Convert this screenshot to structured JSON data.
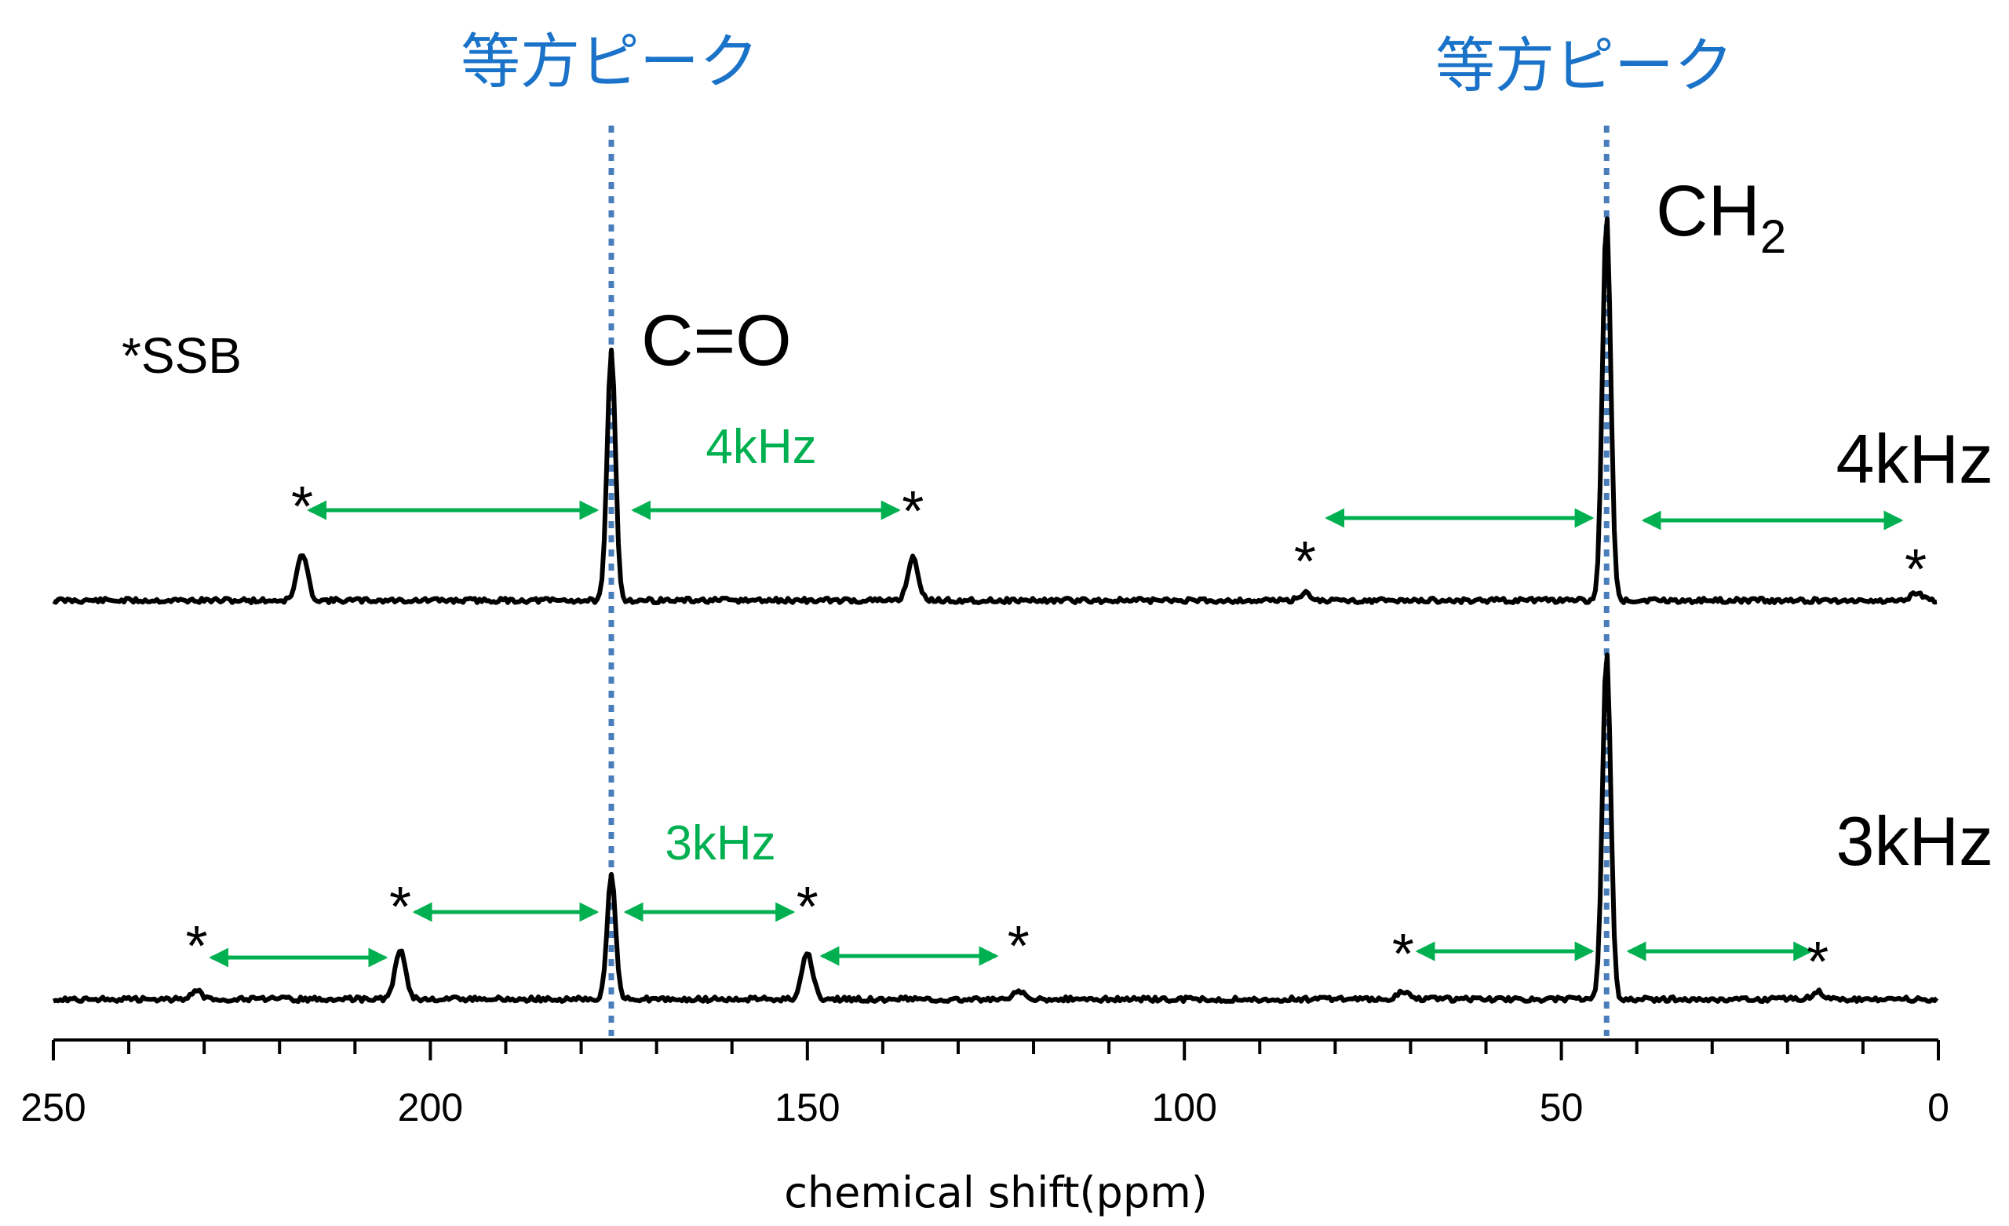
{
  "chart_data": {
    "type": "line",
    "xlabel": "chemical shift(ppm)",
    "xlim": [
      250,
      0
    ],
    "x_reversed": true,
    "x_ticks": [
      "250",
      "200",
      "150",
      "100",
      "50",
      "0"
    ],
    "x_tick_values": [
      250,
      200,
      150,
      100,
      50,
      0
    ],
    "minor_tick_step": 10,
    "legend_note": "*SSB",
    "colors": {
      "isotropic": "#1a73c8",
      "arrow": "#00b050",
      "trace": "#000000",
      "guide": "#4a7ebb"
    },
    "isotropic_label": "等方ピーク",
    "isotropic_shifts": [
      176,
      44
    ],
    "peak_labels": [
      {
        "text": "C=O",
        "shift": 176
      },
      {
        "text": "CH",
        "sub": "2",
        "shift": 44
      }
    ],
    "series": [
      {
        "name": "4kHz",
        "spacing_label": "4kHz",
        "peaks": [
          {
            "shift": 217,
            "height": 0.12,
            "ssb": true
          },
          {
            "shift": 176,
            "height": 0.65,
            "ssb": false
          },
          {
            "shift": 136,
            "height": 0.11,
            "ssb": true
          },
          {
            "shift": 84,
            "height": 0.02,
            "ssb": true
          },
          {
            "shift": 44,
            "height": 1.0,
            "ssb": false
          },
          {
            "shift": 3,
            "height": 0.02,
            "ssb": true
          }
        ],
        "spacing_arrows": [
          [
            216,
            178
          ],
          [
            173,
            138
          ],
          [
            81,
            46
          ],
          [
            39,
            5
          ]
        ]
      },
      {
        "name": "3kHz",
        "spacing_label": "3kHz",
        "peaks": [
          {
            "shift": 231,
            "height": 0.02,
            "ssb": true
          },
          {
            "shift": 204,
            "height": 0.13,
            "ssb": true
          },
          {
            "shift": 176,
            "height": 0.33,
            "ssb": false
          },
          {
            "shift": 150,
            "height": 0.12,
            "ssb": true
          },
          {
            "shift": 122,
            "height": 0.02,
            "ssb": true
          },
          {
            "shift": 71,
            "height": 0.02,
            "ssb": true
          },
          {
            "shift": 44,
            "height": 0.9,
            "ssb": false
          },
          {
            "shift": 16,
            "height": 0.02,
            "ssb": true
          }
        ],
        "spacing_arrows": [
          [
            229,
            206
          ],
          [
            202,
            178
          ],
          [
            174,
            152
          ],
          [
            148,
            125
          ],
          [
            69,
            46
          ],
          [
            41,
            17
          ]
        ]
      }
    ]
  }
}
